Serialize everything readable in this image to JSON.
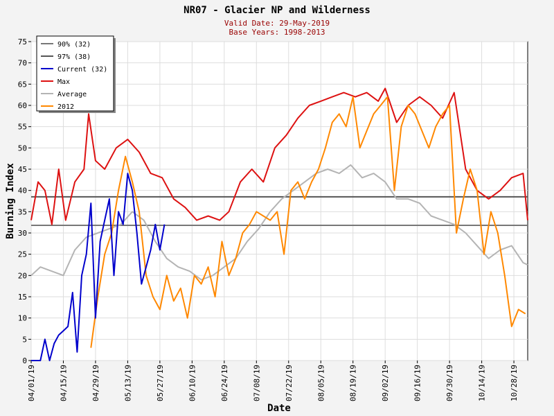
{
  "chart_data": {
    "type": "line",
    "title": "NR07 - Glacier NP and Wilderness",
    "subtitle_lines": [
      "Valid Date: 29-May-2019",
      "Base Years: 1998-2013"
    ],
    "xlabel": "Date",
    "ylabel": "Burning Index",
    "ylim": [
      0,
      75
    ],
    "yticks": [
      0,
      5,
      10,
      15,
      20,
      25,
      30,
      35,
      40,
      45,
      50,
      55,
      60,
      65,
      70,
      75
    ],
    "x_range": [
      "04/01/19",
      "11/03/19"
    ],
    "xticks": [
      "04/01/19",
      "04/15/19",
      "04/29/19",
      "05/13/19",
      "05/27/19",
      "06/10/19",
      "06/24/19",
      "07/08/19",
      "07/22/19",
      "08/05/19",
      "08/19/19",
      "09/02/19",
      "09/16/19",
      "09/30/19",
      "10/14/19",
      "10/28/19"
    ],
    "grid": true,
    "legend_position": "top-left",
    "thresholds": [
      {
        "name": "90% (32)",
        "value": 31.8,
        "color": "#777777"
      },
      {
        "name": "97% (38)",
        "value": 38.5,
        "color": "#555555"
      }
    ],
    "series": [
      {
        "name": "Max",
        "color": "#dd1111",
        "x": [
          "04/01/19",
          "04/04/19",
          "04/07/19",
          "04/10/19",
          "04/13/19",
          "04/16/19",
          "04/20/19",
          "04/24/19",
          "04/26/19",
          "04/29/19",
          "05/03/19",
          "05/08/19",
          "05/13/19",
          "05/18/19",
          "05/23/19",
          "05/28/19",
          "06/02/19",
          "06/07/19",
          "06/12/19",
          "06/17/19",
          "06/22/19",
          "06/26/19",
          "07/01/19",
          "07/06/19",
          "07/11/19",
          "07/16/19",
          "07/21/19",
          "07/26/19",
          "07/31/19",
          "08/05/19",
          "08/10/19",
          "08/15/19",
          "08/20/19",
          "08/25/19",
          "08/30/19",
          "09/02/19",
          "09/07/19",
          "09/12/19",
          "09/17/19",
          "09/22/19",
          "09/27/19",
          "10/02/19",
          "10/07/19",
          "10/12/19",
          "10/17/19",
          "10/22/19",
          "10/27/19",
          "11/01/19",
          "11/03/19"
        ],
        "values": [
          33,
          42,
          40,
          32,
          45,
          33,
          42,
          45,
          58,
          47,
          45,
          50,
          52,
          49,
          44,
          43,
          38,
          36,
          33,
          34,
          33,
          35,
          42,
          45,
          42,
          50,
          53,
          57,
          60,
          61,
          62,
          63,
          62,
          63,
          61,
          64,
          56,
          60,
          62,
          60,
          57,
          63,
          45,
          40,
          38,
          40,
          43,
          44,
          33
        ]
      },
      {
        "name": "Average",
        "color": "#b4b4b4",
        "x": [
          "04/01/19",
          "04/05/19",
          "04/10/19",
          "04/15/19",
          "04/20/19",
          "04/25/19",
          "04/30/19",
          "05/05/19",
          "05/10/19",
          "05/15/19",
          "05/20/19",
          "05/25/19",
          "05/30/19",
          "06/04/19",
          "06/09/19",
          "06/14/19",
          "06/19/19",
          "06/24/19",
          "06/29/19",
          "07/04/19",
          "07/09/19",
          "07/14/19",
          "07/19/19",
          "07/24/19",
          "07/29/19",
          "08/03/19",
          "08/08/19",
          "08/13/19",
          "08/18/19",
          "08/23/19",
          "08/28/19",
          "09/02/19",
          "09/07/19",
          "09/12/19",
          "09/17/19",
          "09/22/19",
          "09/27/19",
          "10/02/19",
          "10/07/19",
          "10/12/19",
          "10/17/19",
          "10/22/19",
          "10/27/19",
          "11/01/19",
          "11/03/19"
        ],
        "values": [
          20,
          22,
          21,
          20,
          26,
          29,
          30,
          31,
          32,
          35,
          33,
          28,
          24,
          22,
          21,
          19,
          20,
          22,
          24,
          28,
          31,
          35,
          38,
          40,
          42,
          44,
          45,
          44,
          46,
          43,
          44,
          42,
          38,
          38,
          37,
          34,
          33,
          32,
          30,
          27,
          24,
          26,
          27,
          23,
          22.5
        ]
      },
      {
        "name": "2012",
        "color": "#ff8800",
        "x": [
          "04/27/19",
          "04/30/19",
          "05/03/19",
          "05/06/19",
          "05/09/19",
          "05/12/19",
          "05/15/19",
          "05/18/19",
          "05/21/19",
          "05/24/19",
          "05/27/19",
          "05/30/19",
          "06/02/19",
          "06/05/19",
          "06/08/19",
          "06/11/19",
          "06/14/19",
          "06/17/19",
          "06/20/19",
          "06/23/19",
          "06/26/19",
          "06/29/19",
          "07/02/19",
          "07/05/19",
          "07/08/19",
          "07/11/19",
          "07/14/19",
          "07/17/19",
          "07/20/19",
          "07/23/19",
          "07/26/19",
          "07/29/19",
          "08/01/19",
          "08/04/19",
          "08/07/19",
          "08/10/19",
          "08/13/19",
          "08/16/19",
          "08/19/19",
          "08/22/19",
          "08/25/19",
          "08/28/19",
          "08/31/19",
          "09/03/19",
          "09/06/19",
          "09/09/19",
          "09/12/19",
          "09/15/19",
          "09/18/19",
          "09/21/19",
          "09/24/19",
          "09/27/19",
          "09/30/19",
          "10/03/19",
          "10/06/19",
          "10/09/19",
          "10/12/19",
          "10/15/19",
          "10/18/19",
          "10/21/19",
          "10/24/19",
          "10/27/19",
          "10/30/19",
          "11/02/19"
        ],
        "values": [
          3,
          15,
          25,
          30,
          40,
          48,
          42,
          35,
          20,
          15,
          12,
          20,
          14,
          17,
          10,
          20,
          18,
          22,
          15,
          28,
          20,
          24,
          30,
          32,
          35,
          34,
          33,
          35,
          25,
          40,
          42,
          38,
          42,
          45,
          50,
          56,
          58,
          55,
          62,
          50,
          54,
          58,
          60,
          62,
          40,
          55,
          60,
          58,
          54,
          50,
          55,
          58,
          60,
          30,
          38,
          45,
          40,
          25,
          35,
          30,
          20,
          8,
          12,
          11
        ]
      },
      {
        "name": "Current (32)",
        "color": "#0000cc",
        "x": [
          "04/01/19",
          "04/03/19",
          "04/05/19",
          "04/07/19",
          "04/09/19",
          "04/11/19",
          "04/13/19",
          "04/15/19",
          "04/17/19",
          "04/19/19",
          "04/21/19",
          "04/23/19",
          "04/25/19",
          "04/27/19",
          "04/29/19",
          "05/01/19",
          "05/03/19",
          "05/05/19",
          "05/07/19",
          "05/09/19",
          "05/11/19",
          "05/13/19",
          "05/15/19",
          "05/17/19",
          "05/19/19",
          "05/21/19",
          "05/23/19",
          "05/25/19",
          "05/27/19",
          "05/29/19"
        ],
        "values": [
          0,
          0,
          0,
          5,
          0,
          4,
          6,
          7,
          8,
          16,
          2,
          20,
          25,
          37,
          10,
          28,
          33,
          38,
          20,
          35,
          32,
          44,
          40,
          30,
          18,
          22,
          26,
          32,
          26,
          32
        ]
      }
    ]
  }
}
